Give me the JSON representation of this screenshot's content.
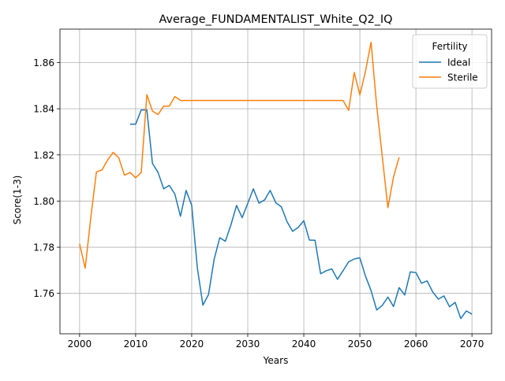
{
  "chart_data": {
    "type": "line",
    "title": "Average_FUNDAMENTALIST_White_Q2_IQ",
    "xlabel": "Years",
    "ylabel": "Score(1-3)",
    "xlim": [
      1996.5,
      2073.5
    ],
    "ylim": [
      1.7425,
      1.8745
    ],
    "xticks": [
      2000,
      2010,
      2020,
      2030,
      2040,
      2050,
      2060,
      2070
    ],
    "yticks": [
      1.76,
      1.78,
      1.8,
      1.82,
      1.84,
      1.86
    ],
    "ytick_labels": [
      "1.76",
      "1.78",
      "1.80",
      "1.82",
      "1.84",
      "1.86"
    ],
    "grid": true,
    "legend": {
      "title": "Fertility",
      "position": "top-right"
    },
    "series": [
      {
        "name": "Ideal",
        "color": "#1f77b4",
        "x": [
          2009,
          2010,
          2011,
          2012,
          2013,
          2014,
          2015,
          2016,
          2017,
          2018,
          2019,
          2020,
          2021,
          2022,
          2023,
          2024,
          2025,
          2026,
          2027,
          2028,
          2029,
          2030,
          2031,
          2032,
          2033,
          2034,
          2035,
          2036,
          2037,
          2038,
          2039,
          2040,
          2041,
          2042,
          2043,
          2044,
          2045,
          2046,
          2047,
          2048,
          2049,
          2050,
          2051,
          2052,
          2053,
          2054,
          2055,
          2056,
          2057,
          2058,
          2059,
          2060,
          2061,
          2062,
          2063,
          2064,
          2065,
          2066,
          2067,
          2068,
          2069,
          2070
        ],
        "y": [
          1.8333,
          1.8333,
          1.8395,
          1.8395,
          1.8163,
          1.8124,
          1.8053,
          1.8068,
          1.803,
          1.7934,
          1.8046,
          1.7982,
          1.7712,
          1.7549,
          1.7595,
          1.7747,
          1.7841,
          1.7826,
          1.7897,
          1.7981,
          1.7928,
          1.799,
          1.8053,
          1.7991,
          1.8005,
          1.8046,
          1.7993,
          1.7975,
          1.7911,
          1.7869,
          1.7886,
          1.7915,
          1.7831,
          1.783,
          1.7685,
          1.7698,
          1.7706,
          1.7661,
          1.7698,
          1.7737,
          1.7749,
          1.7754,
          1.7675,
          1.7612,
          1.7528,
          1.7548,
          1.7584,
          1.7543,
          1.7625,
          1.7593,
          1.7693,
          1.769,
          1.7644,
          1.7654,
          1.7606,
          1.7575,
          1.7589,
          1.7542,
          1.7561,
          1.7491,
          1.7524,
          1.751
        ]
      },
      {
        "name": "Sterile",
        "color": "#ff7f0e",
        "x": [
          2000,
          2001,
          2002,
          2003,
          2004,
          2005,
          2006,
          2007,
          2008,
          2009,
          2010,
          2011,
          2012,
          2013,
          2014,
          2015,
          2016,
          2017,
          2018,
          2019,
          2020,
          2021,
          2022,
          2023,
          2024,
          2025,
          2026,
          2027,
          2028,
          2029,
          2030,
          2031,
          2032,
          2033,
          2034,
          2035,
          2036,
          2037,
          2038,
          2039,
          2040,
          2041,
          2042,
          2043,
          2044,
          2045,
          2046,
          2047,
          2048,
          2049,
          2050,
          2051,
          2052,
          2053,
          2054,
          2055,
          2056,
          2057
        ],
        "y": [
          1.7815,
          1.7709,
          1.7929,
          1.8126,
          1.8135,
          1.8178,
          1.8211,
          1.8187,
          1.8112,
          1.8124,
          1.8101,
          1.8124,
          1.8461,
          1.839,
          1.8375,
          1.8411,
          1.8411,
          1.8453,
          1.8436,
          1.8436,
          1.8436,
          1.8436,
          1.8436,
          1.8436,
          1.8436,
          1.8436,
          1.8436,
          1.8436,
          1.8436,
          1.8436,
          1.8436,
          1.8436,
          1.8436,
          1.8436,
          1.8436,
          1.8436,
          1.8436,
          1.8436,
          1.8436,
          1.8436,
          1.8436,
          1.8436,
          1.8436,
          1.8436,
          1.8436,
          1.8436,
          1.8436,
          1.8436,
          1.8393,
          1.8557,
          1.846,
          1.8562,
          1.8688,
          1.8413,
          1.8193,
          1.7971,
          1.8104,
          1.819
        ]
      }
    ]
  }
}
